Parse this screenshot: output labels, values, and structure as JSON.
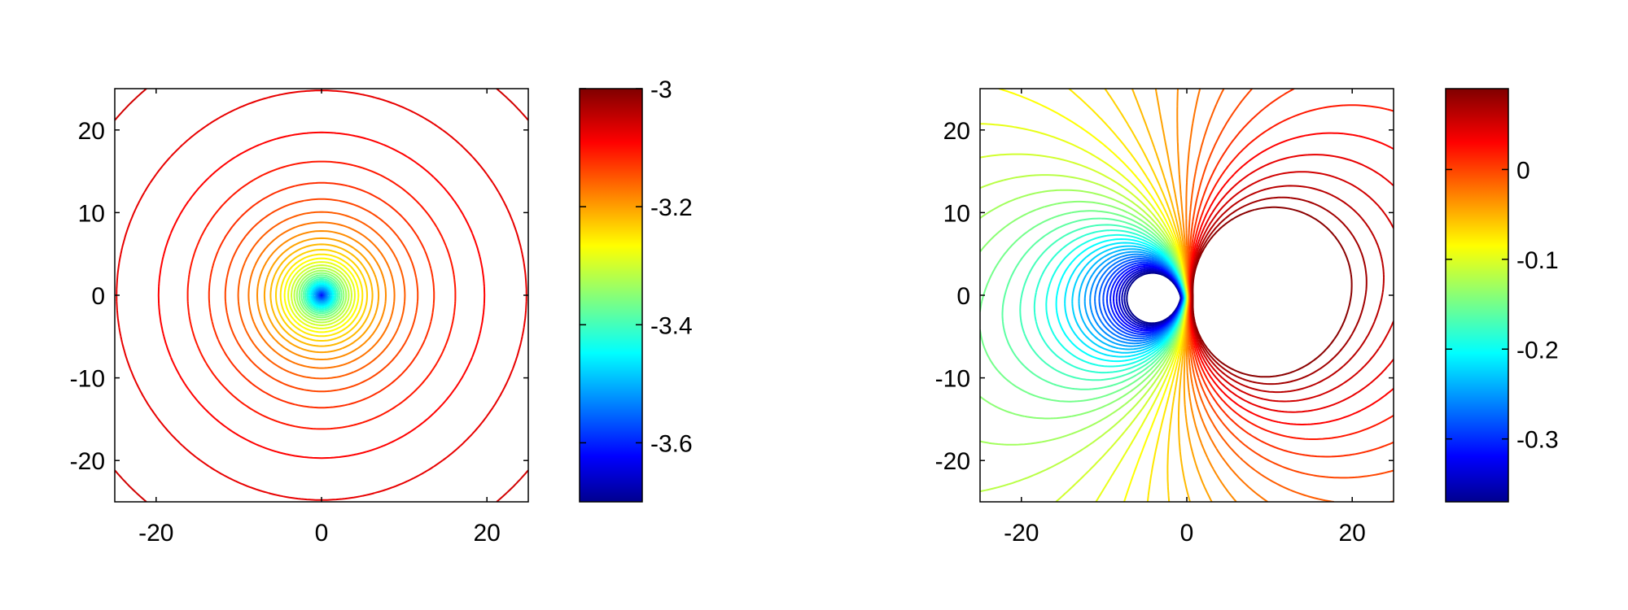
{
  "chart_data": [
    {
      "type": "contour",
      "title": "",
      "xlabel": "",
      "ylabel": "",
      "xlim": [
        -25,
        25
      ],
      "ylim": [
        -25,
        25
      ],
      "xticks": [
        -20,
        0,
        20
      ],
      "yticks": [
        20,
        10,
        0,
        -10,
        -20
      ],
      "xtick_labels": [
        "-20",
        "0",
        "20"
      ],
      "ytick_labels": [
        "20",
        "10",
        "0",
        "-10",
        "-20"
      ],
      "colormap": "jet",
      "clim": [
        -3.7,
        -3.0
      ],
      "colorbar_ticks": [
        -3.0,
        -3.2,
        -3.4,
        -3.6
      ],
      "colorbar_labels": [
        "-3",
        "-3.2",
        "-3.4",
        "-3.6"
      ],
      "field": "radially symmetric, minimum at origin",
      "grid": false
    },
    {
      "type": "contour",
      "title": "",
      "xlabel": "",
      "ylabel": "",
      "xlim": [
        -25,
        25
      ],
      "ylim": [
        -25,
        25
      ],
      "xticks": [
        -20,
        0,
        20
      ],
      "yticks": [
        20,
        10,
        0,
        -10,
        -20
      ],
      "xtick_labels": [
        "-20",
        "0",
        "20"
      ],
      "ytick_labels": [
        "20",
        "10",
        "0",
        "-10",
        "-20"
      ],
      "colormap": "jet",
      "clim": [
        -0.37,
        0.09
      ],
      "colorbar_ticks": [
        0,
        -0.1,
        -0.2,
        -0.3
      ],
      "colorbar_labels": [
        "0",
        "-0.1",
        "-0.2",
        "-0.3"
      ],
      "field": "asymmetric dipole-like, minimum near origin",
      "grid": false
    }
  ]
}
